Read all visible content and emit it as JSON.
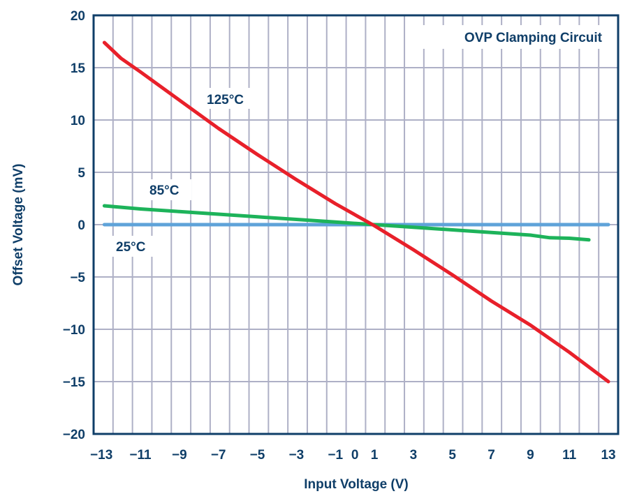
{
  "chart_data": {
    "type": "line",
    "title": "OVP Clamping Circuit",
    "xlabel": "Input Voltage (V)",
    "ylabel": "Offset Voltage (mV)",
    "xlim": [
      -13.4,
      13.5
    ],
    "ylim": [
      -20,
      20
    ],
    "xticks": [
      -13,
      -11,
      -9,
      -7,
      -5,
      -3,
      -1,
      0,
      1,
      3,
      5,
      7,
      9,
      11,
      13
    ],
    "xtick_labels": [
      "−13",
      "−11",
      "−9",
      "−7",
      "−5",
      "−3",
      "−1",
      "0",
      "1",
      "3",
      "5",
      "7",
      "9",
      "11",
      "13"
    ],
    "yticks": [
      20,
      15,
      10,
      5,
      0,
      -5,
      -10,
      -15,
      -20
    ],
    "ytick_labels": [
      "20",
      "15",
      "10",
      "5",
      "0",
      "−5",
      "−10",
      "−15",
      "−20"
    ],
    "grid": true,
    "series": [
      {
        "name": "25°C",
        "color": "#5fa3d9",
        "x": [
          -12.85,
          13
        ],
        "y": [
          0,
          0
        ]
      },
      {
        "name": "85°C",
        "color": "#1db35a",
        "x": [
          -12.85,
          -11,
          -9,
          -7,
          -5,
          -3,
          -1,
          1,
          3,
          5,
          7,
          9,
          10,
          11,
          12
        ],
        "y": [
          1.8,
          1.5,
          1.25,
          1.0,
          0.75,
          0.5,
          0.25,
          0,
          -0.25,
          -0.5,
          -0.75,
          -1.0,
          -1.25,
          -1.3,
          -1.45
        ]
      },
      {
        "name": "125°C",
        "color": "#e8202a",
        "x": [
          -12.85,
          -12,
          -11,
          -9,
          -7,
          -5,
          -3,
          -1,
          1,
          3,
          5,
          7,
          9,
          11,
          12,
          13
        ],
        "y": [
          17.4,
          15.9,
          14.6,
          11.9,
          9.2,
          6.7,
          4.3,
          2.0,
          -0.1,
          -2.4,
          -4.8,
          -7.3,
          -9.6,
          -12.2,
          -13.6,
          -15.0
        ]
      }
    ]
  }
}
